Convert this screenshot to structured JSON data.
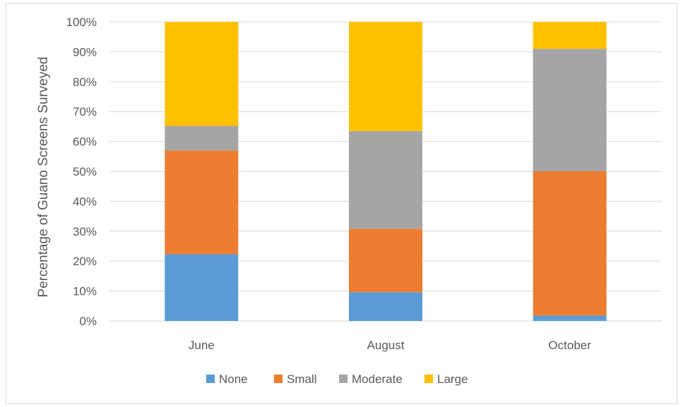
{
  "chart_data": {
    "type": "bar",
    "stacked": true,
    "percent_stacked": true,
    "title": "",
    "xlabel": "",
    "ylabel": "Percentage of Guano Screens Surveyed",
    "ylim": [
      0,
      100
    ],
    "yticks": [
      "0%",
      "10%",
      "20%",
      "30%",
      "40%",
      "50%",
      "60%",
      "70%",
      "80%",
      "90%",
      "100%"
    ],
    "categories": [
      "June",
      "August",
      "October"
    ],
    "series": [
      {
        "name": "None",
        "color": "#5B9BD5",
        "values": [
          22.3,
          9.6,
          1.8
        ]
      },
      {
        "name": "Small",
        "color": "#ED7D31",
        "values": [
          34.7,
          21.2,
          48.2
        ]
      },
      {
        "name": "Moderate",
        "color": "#A5A5A5",
        "values": [
          8.2,
          32.7,
          41.0
        ]
      },
      {
        "name": "Large",
        "color": "#FFC000",
        "values": [
          34.8,
          36.5,
          9.0
        ]
      }
    ],
    "grid": true,
    "legend_position": "bottom"
  }
}
